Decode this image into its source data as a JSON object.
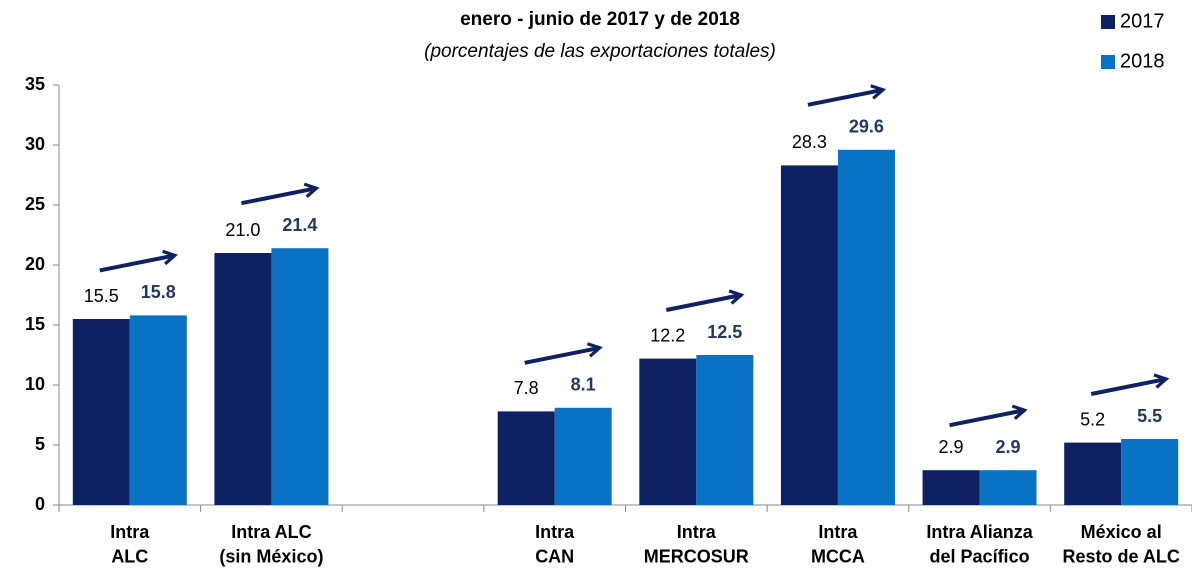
{
  "chart_data": {
    "type": "bar",
    "title": "enero - junio de 2017 y de 2018",
    "subtitle": "(porcentajes de las exportaciones totales)",
    "categories": [
      "Intra\nALC",
      "Intra ALC\n(sin México)",
      null,
      "Intra\nCAN",
      "Intra\nMERCOSUR",
      "Intra\nMCCA",
      "Intra Alianza\ndel Pacífico",
      "México al\nResto de ALC"
    ],
    "series": [
      {
        "name": "2017",
        "color": "#0d2163",
        "values": [
          15.5,
          21.0,
          null,
          7.8,
          12.2,
          28.3,
          2.9,
          5.2
        ],
        "value_labels": [
          "15.5",
          "21.0",
          null,
          "7.8",
          "12.2",
          "28.3",
          "2.9",
          "5.2"
        ]
      },
      {
        "name": "2018",
        "color": "#0a72c4",
        "values": [
          15.8,
          21.4,
          null,
          8.1,
          12.5,
          29.6,
          2.9,
          5.5
        ],
        "value_labels": [
          "15.8",
          "21.4",
          null,
          "8.1",
          "12.5",
          "29.6",
          "2.9",
          "5.5"
        ]
      }
    ],
    "ylim": [
      0,
      35
    ],
    "yticks": [
      0,
      5,
      10,
      15,
      20,
      25,
      30,
      35
    ],
    "grid": false,
    "legend": "top-right"
  }
}
